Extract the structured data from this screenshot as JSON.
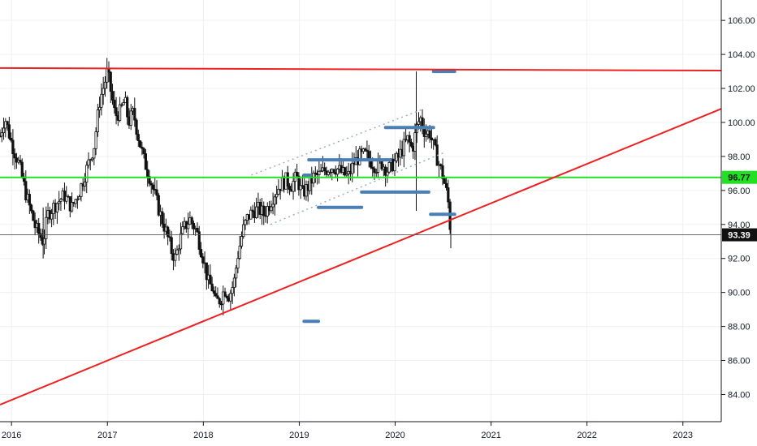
{
  "chart_data": {
    "type": "candlestick",
    "title": "",
    "xlabel": "",
    "ylabel": "",
    "ylim": [
      82.4,
      107.2
    ],
    "xlim": [
      2015.88,
      2023.4
    ],
    "grid": true,
    "y_ticks": [
      "84.00",
      "86.00",
      "88.00",
      "90.00",
      "92.00",
      "94.00",
      "96.00",
      "98.00",
      "100.00",
      "102.00",
      "104.00",
      "106.00"
    ],
    "x_ticks": [
      "2016",
      "2017",
      "2018",
      "2019",
      "2020",
      "2021",
      "2022",
      "2023"
    ],
    "current_price": "93.39",
    "horizontal_level": "96.77",
    "colors": {
      "resistance": "#ef2020",
      "support_level": "#22e022",
      "trendline": "#ef2020",
      "price_line": "#555555",
      "candles": "#111111",
      "volume_profile": "#4a7fb5",
      "channel": "#9aa8c2",
      "grid": "#eef0f3",
      "badge_green": "#22e022",
      "badge_black": "#111111"
    },
    "lines": {
      "resistance": [
        [
          2015.88,
          103.2
        ],
        [
          2023.4,
          103.05
        ]
      ],
      "rising_trend": [
        [
          2015.88,
          83.4
        ],
        [
          2023.4,
          100.8
        ]
      ],
      "channel_upper": [
        [
          2018.5,
          96.9
        ],
        [
          2020.3,
          100.8
        ]
      ],
      "channel_lower": [
        [
          2018.7,
          94.0
        ],
        [
          2020.5,
          98.2
        ]
      ]
    },
    "horizontal_segments": [
      {
        "x": [
          2020.4,
          2020.62
        ],
        "y": 103.0
      },
      {
        "x": [
          2019.9,
          2020.4
        ],
        "y": 99.7
      },
      {
        "x": [
          2019.1,
          2019.95
        ],
        "y": 97.8
      },
      {
        "x": [
          2019.05,
          2019.12
        ],
        "y": 96.9
      },
      {
        "x": [
          2019.65,
          2020.35
        ],
        "y": 95.9
      },
      {
        "x": [
          2019.2,
          2019.65
        ],
        "y": 95.0
      },
      {
        "x": [
          2020.37,
          2020.62
        ],
        "y": 94.6
      },
      {
        "x": [
          2019.05,
          2019.2
        ],
        "y": 88.3
      }
    ],
    "price_path": [
      [
        2015.88,
        99.2
      ],
      [
        2015.93,
        100.3
      ],
      [
        2016.0,
        98.8
      ],
      [
        2016.08,
        97.5
      ],
      [
        2016.15,
        95.8
      ],
      [
        2016.25,
        93.8
      ],
      [
        2016.33,
        93.0
      ],
      [
        2016.38,
        94.6
      ],
      [
        2016.46,
        95.2
      ],
      [
        2016.55,
        95.7
      ],
      [
        2016.63,
        95.0
      ],
      [
        2016.71,
        96.0
      ],
      [
        2016.78,
        97.2
      ],
      [
        2016.86,
        98.6
      ],
      [
        2016.92,
        101.3
      ],
      [
        2016.97,
        102.3
      ],
      [
        2017.0,
        103.0
      ],
      [
        2017.03,
        102.0
      ],
      [
        2017.08,
        100.4
      ],
      [
        2017.13,
        100.6
      ],
      [
        2017.18,
        101.3
      ],
      [
        2017.22,
        100.0
      ],
      [
        2017.27,
        100.6
      ],
      [
        2017.32,
        99.2
      ],
      [
        2017.38,
        97.8
      ],
      [
        2017.44,
        96.8
      ],
      [
        2017.5,
        95.6
      ],
      [
        2017.55,
        94.6
      ],
      [
        2017.61,
        93.6
      ],
      [
        2017.67,
        92.4
      ],
      [
        2017.71,
        92.0
      ],
      [
        2017.75,
        93.0
      ],
      [
        2017.8,
        93.8
      ],
      [
        2017.86,
        94.3
      ],
      [
        2017.93,
        93.6
      ],
      [
        2018.0,
        92.0
      ],
      [
        2018.05,
        90.6
      ],
      [
        2018.09,
        90.3
      ],
      [
        2018.13,
        89.4
      ],
      [
        2018.18,
        89.6
      ],
      [
        2018.22,
        90.2
      ],
      [
        2018.27,
        89.8
      ],
      [
        2018.32,
        90.6
      ],
      [
        2018.36,
        92.2
      ],
      [
        2018.41,
        93.6
      ],
      [
        2018.46,
        94.4
      ],
      [
        2018.52,
        94.8
      ],
      [
        2018.58,
        94.9
      ],
      [
        2018.63,
        94.6
      ],
      [
        2018.69,
        95.2
      ],
      [
        2018.74,
        95.8
      ],
      [
        2018.8,
        96.3
      ],
      [
        2018.86,
        96.6
      ],
      [
        2018.92,
        96.3
      ],
      [
        2018.97,
        96.8
      ],
      [
        2019.03,
        95.8
      ],
      [
        2019.09,
        96.2
      ],
      [
        2019.15,
        96.8
      ],
      [
        2019.21,
        96.9
      ],
      [
        2019.27,
        97.2
      ],
      [
        2019.33,
        97.4
      ],
      [
        2019.39,
        97.3
      ],
      [
        2019.45,
        97.0
      ],
      [
        2019.51,
        96.8
      ],
      [
        2019.57,
        97.6
      ],
      [
        2019.63,
        98.0
      ],
      [
        2019.69,
        98.1
      ],
      [
        2019.75,
        97.7
      ],
      [
        2019.8,
        97.4
      ],
      [
        2019.86,
        97.6
      ],
      [
        2019.92,
        97.2
      ],
      [
        2019.97,
        97.5
      ],
      [
        2020.03,
        97.9
      ],
      [
        2020.08,
        98.5
      ],
      [
        2020.13,
        99.0
      ],
      [
        2020.18,
        98.4
      ],
      [
        2020.22,
        99.6
      ],
      [
        2020.26,
        100.3
      ],
      [
        2020.31,
        99.4
      ],
      [
        2020.36,
        99.4
      ],
      [
        2020.41,
        98.4
      ],
      [
        2020.46,
        97.5
      ],
      [
        2020.5,
        96.8
      ],
      [
        2020.55,
        95.5
      ],
      [
        2020.58,
        93.4
      ]
    ]
  }
}
